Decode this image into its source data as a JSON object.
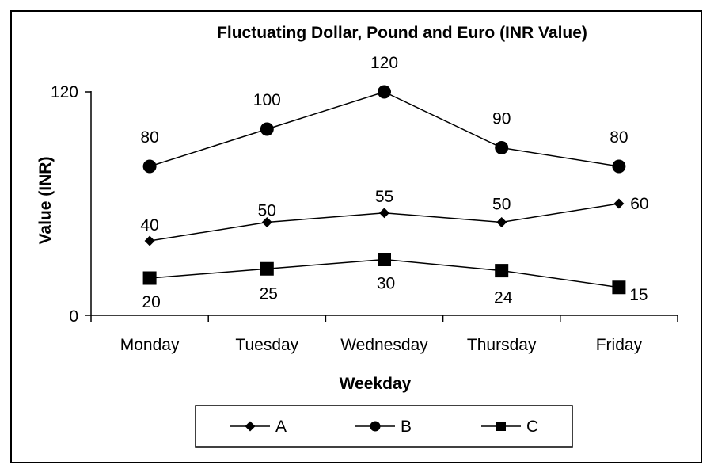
{
  "chart_data": {
    "type": "line",
    "title": "Fluctuating Dollar, Pound and Euro (INR Value)",
    "xlabel": "Weekday",
    "ylabel": "Value (INR)",
    "categories": [
      "Monday",
      "Tuesday",
      "Wednesday",
      "Thursday",
      "Friday"
    ],
    "ylim": [
      0,
      120
    ],
    "yticks": [
      "0",
      "120"
    ],
    "grid": false,
    "legend_position": "bottom",
    "series": [
      {
        "name": "A",
        "marker": "diamond",
        "values": [
          40,
          50,
          55,
          50,
          60
        ],
        "labels": [
          "40",
          "50",
          "55",
          "50",
          "60"
        ]
      },
      {
        "name": "B",
        "marker": "circle",
        "values": [
          80,
          100,
          120,
          90,
          80
        ],
        "labels": [
          "80",
          "100",
          "120",
          "90",
          "80"
        ]
      },
      {
        "name": "C",
        "marker": "square",
        "values": [
          20,
          25,
          30,
          24,
          15
        ],
        "labels": [
          "20",
          "25",
          "30",
          "24",
          "15"
        ]
      }
    ]
  }
}
